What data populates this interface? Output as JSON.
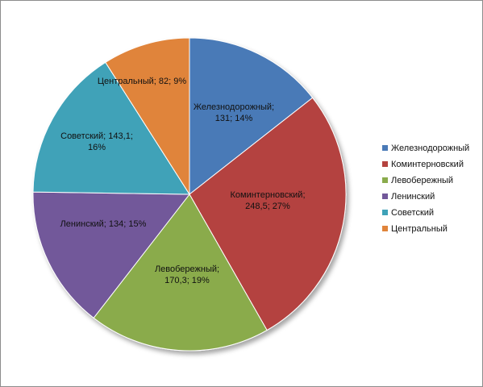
{
  "chart_data": {
    "type": "pie",
    "categories": [
      "Железнодорожный",
      "Коминтерновский",
      "Левобережный",
      "Ленинский",
      "Советский",
      "Центральный"
    ],
    "values": [
      131,
      248.5,
      170.3,
      134,
      143.1,
      82
    ],
    "percents": [
      "14%",
      "27%",
      "19%",
      "15%",
      "16%",
      "9%"
    ],
    "data_labels": [
      [
        "Железнодорожный;",
        "131; 14%"
      ],
      [
        "Коминтерновский;",
        "248,5; 27%"
      ],
      [
        "Левобережный;",
        "170,3; 19%"
      ],
      [
        "Ленинский; 134; 15%"
      ],
      [
        "Советский; 143,1;",
        "16%"
      ],
      [
        "Центральный; 82; 9%"
      ]
    ],
    "colors": [
      "#4a7ab7",
      "#b4433f",
      "#8aab4c",
      "#72589a",
      "#3fa2b8",
      "#e0843b"
    ],
    "legend": {
      "position": "right",
      "entries": [
        "Железнодорожный",
        "Коминтерновский",
        "Левобережный",
        "Ленинский",
        "Советский",
        "Центральный"
      ]
    },
    "start_angle": "12 o'clock",
    "direction": "clockwise",
    "title": ""
  }
}
